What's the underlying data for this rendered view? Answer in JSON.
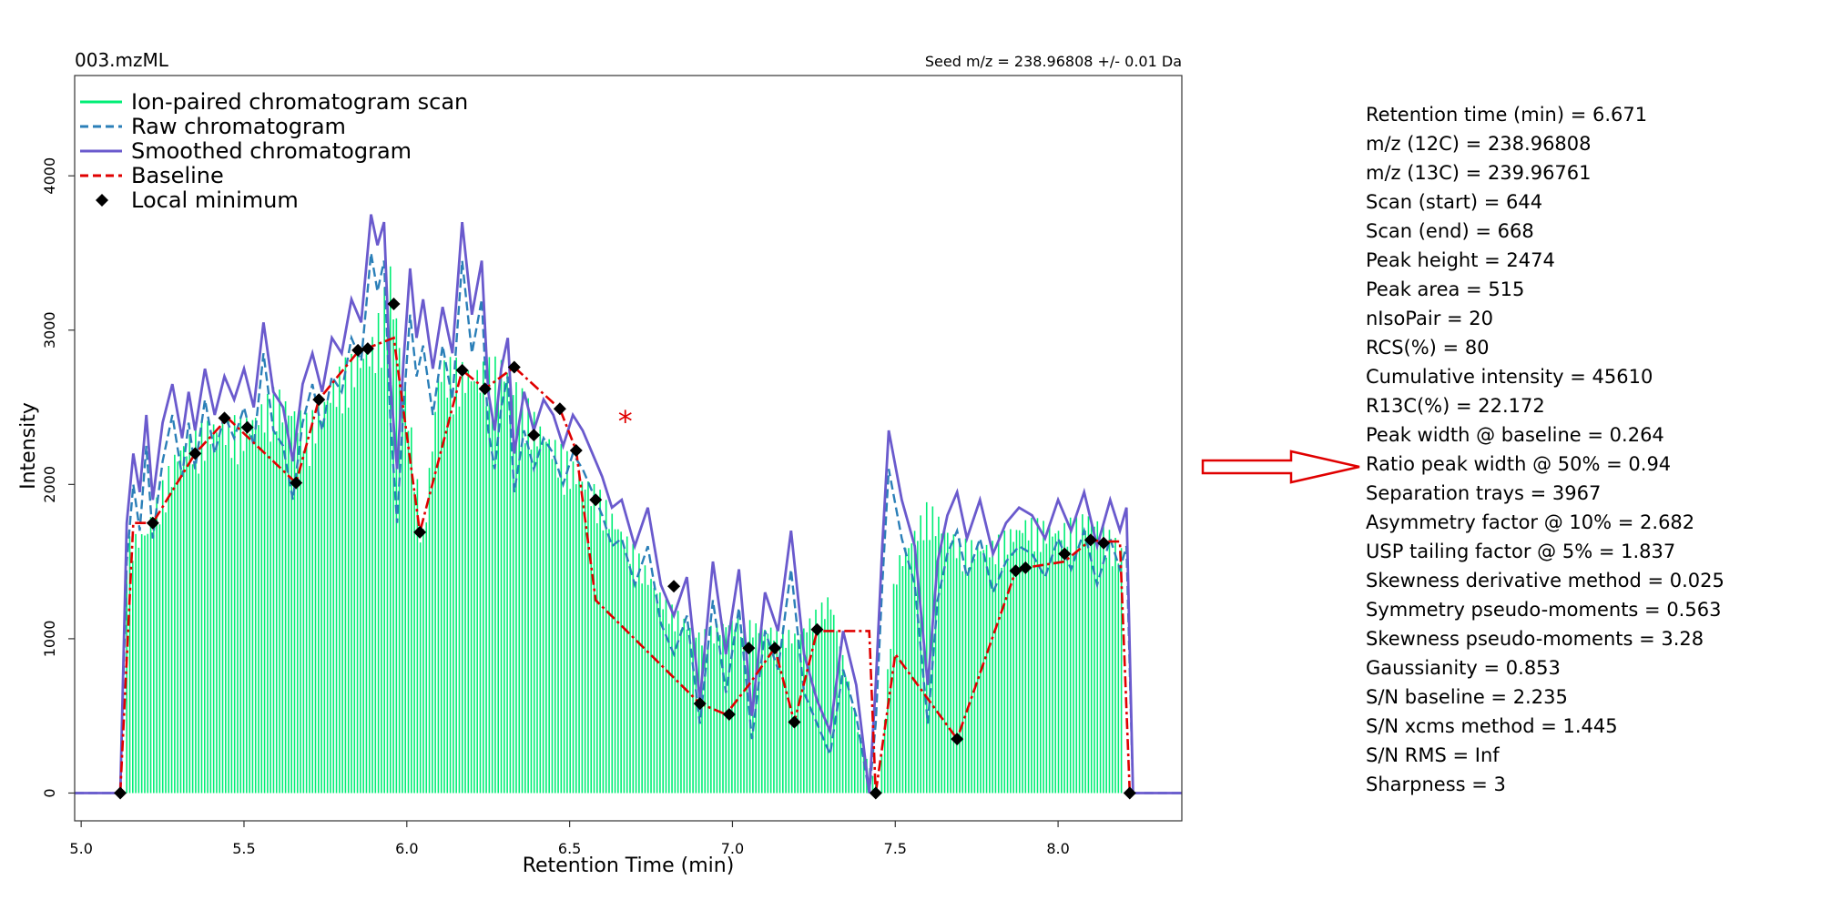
{
  "chart_data": {
    "type": "line",
    "title": "003.mzML",
    "subtitle": "Seed m/z = 238.96808 +/- 0.01 Da",
    "xlabel": "Retention Time (min)",
    "ylabel": "Intensity",
    "xlim": [
      4.98,
      8.38
    ],
    "ylim": [
      -180,
      4650
    ],
    "x_ticks": [
      5.0,
      5.5,
      6.0,
      6.5,
      7.0,
      7.5,
      8.0
    ],
    "x_tick_labels": [
      "5.0",
      "5.5",
      "6.0",
      "6.5",
      "7.0",
      "7.5",
      "8.0"
    ],
    "y_ticks": [
      0,
      1000,
      2000,
      3000,
      4000
    ],
    "y_tick_labels": [
      "0",
      "1000",
      "2000",
      "3000",
      "4000"
    ],
    "grid": false,
    "legend_position": "top-left",
    "legend": [
      {
        "label": "Ion-paired chromatogram scan",
        "style": "solid",
        "color": "#00ee76"
      },
      {
        "label": "Raw chromatogram",
        "style": "dashed",
        "color": "#2b7fb8"
      },
      {
        "label": "Smoothed chromatogram",
        "style": "solid",
        "color": "#6a5acd"
      },
      {
        "label": "Baseline",
        "style": "dashed",
        "color": "#e00000"
      },
      {
        "label": "Local minimum",
        "style": "marker-diamond",
        "color": "#000000"
      }
    ],
    "series": [
      {
        "name": "Smoothed chromatogram",
        "color": "#6a5acd",
        "x": [
          4.98,
          5.12,
          5.14,
          5.16,
          5.18,
          5.2,
          5.22,
          5.25,
          5.28,
          5.31,
          5.33,
          5.35,
          5.38,
          5.41,
          5.44,
          5.47,
          5.5,
          5.53,
          5.56,
          5.59,
          5.62,
          5.65,
          5.68,
          5.71,
          5.74,
          5.77,
          5.8,
          5.83,
          5.86,
          5.89,
          5.91,
          5.93,
          5.95,
          5.97,
          5.99,
          6.01,
          6.03,
          6.05,
          6.08,
          6.11,
          6.14,
          6.17,
          6.2,
          6.23,
          6.25,
          6.27,
          6.29,
          6.31,
          6.33,
          6.36,
          6.39,
          6.42,
          6.45,
          6.48,
          6.51,
          6.54,
          6.57,
          6.6,
          6.63,
          6.66,
          6.7,
          6.74,
          6.78,
          6.82,
          6.86,
          6.9,
          6.94,
          6.98,
          7.02,
          7.06,
          7.1,
          7.14,
          7.18,
          7.22,
          7.26,
          7.3,
          7.34,
          7.38,
          7.42,
          7.44,
          7.46,
          7.48,
          7.52,
          7.56,
          7.6,
          7.63,
          7.66,
          7.69,
          7.72,
          7.76,
          7.8,
          7.84,
          7.88,
          7.92,
          7.96,
          8.0,
          8.04,
          8.08,
          8.12,
          8.16,
          8.19,
          8.21,
          8.23,
          8.25,
          8.38
        ],
        "y": [
          0,
          0,
          1750,
          2200,
          1950,
          2450,
          1900,
          2400,
          2650,
          2300,
          2600,
          2350,
          2750,
          2450,
          2700,
          2550,
          2750,
          2500,
          3050,
          2600,
          2500,
          2150,
          2650,
          2850,
          2600,
          2950,
          2850,
          3200,
          3050,
          3750,
          3550,
          3700,
          2650,
          2100,
          2800,
          3400,
          2950,
          3200,
          2750,
          3150,
          2850,
          3700,
          3100,
          3450,
          2600,
          2350,
          2750,
          2950,
          2200,
          2600,
          2350,
          2550,
          2450,
          2250,
          2450,
          2350,
          2200,
          2050,
          1850,
          1900,
          1600,
          1850,
          1350,
          1150,
          1400,
          600,
          1500,
          900,
          1450,
          500,
          1300,
          1050,
          1700,
          900,
          600,
          400,
          1050,
          700,
          0,
          700,
          1600,
          2350,
          1900,
          1600,
          700,
          1500,
          1800,
          1950,
          1650,
          1900,
          1550,
          1750,
          1850,
          1800,
          1650,
          1900,
          1700,
          1950,
          1600,
          1900,
          1700,
          1850,
          0,
          0,
          0
        ]
      },
      {
        "name": "Raw chromatogram",
        "color": "#2b7fb8",
        "x": [
          4.98,
          5.12,
          5.14,
          5.16,
          5.18,
          5.2,
          5.22,
          5.25,
          5.28,
          5.31,
          5.33,
          5.35,
          5.38,
          5.41,
          5.44,
          5.47,
          5.5,
          5.53,
          5.56,
          5.59,
          5.62,
          5.65,
          5.68,
          5.71,
          5.74,
          5.77,
          5.8,
          5.83,
          5.86,
          5.89,
          5.91,
          5.93,
          5.95,
          5.97,
          5.99,
          6.01,
          6.03,
          6.05,
          6.08,
          6.11,
          6.14,
          6.17,
          6.2,
          6.23,
          6.25,
          6.27,
          6.29,
          6.31,
          6.33,
          6.36,
          6.39,
          6.42,
          6.45,
          6.48,
          6.51,
          6.54,
          6.57,
          6.6,
          6.63,
          6.66,
          6.7,
          6.74,
          6.78,
          6.82,
          6.86,
          6.9,
          6.94,
          6.98,
          7.02,
          7.06,
          7.1,
          7.14,
          7.18,
          7.22,
          7.26,
          7.3,
          7.34,
          7.38,
          7.42,
          7.44,
          7.46,
          7.48,
          7.52,
          7.56,
          7.6,
          7.63,
          7.66,
          7.69,
          7.72,
          7.76,
          7.8,
          7.84,
          7.88,
          7.92,
          7.96,
          8.0,
          8.04,
          8.08,
          8.12,
          8.16,
          8.19,
          8.21,
          8.23,
          8.25,
          8.38
        ],
        "y": [
          0,
          0,
          1500,
          2000,
          1700,
          2250,
          1650,
          2150,
          2450,
          2050,
          2400,
          2100,
          2550,
          2200,
          2450,
          2300,
          2500,
          2250,
          2850,
          2350,
          2250,
          1900,
          2400,
          2650,
          2350,
          2700,
          2600,
          2950,
          2800,
          3500,
          3250,
          3450,
          2400,
          1750,
          2500,
          3100,
          2700,
          2900,
          2450,
          2900,
          2550,
          3450,
          2850,
          3200,
          2350,
          2100,
          2500,
          2700,
          1950,
          2350,
          2100,
          2300,
          2200,
          2000,
          2200,
          2100,
          1950,
          1800,
          1600,
          1650,
          1350,
          1600,
          1100,
          900,
          1150,
          450,
          1250,
          650,
          1200,
          350,
          1050,
          800,
          1450,
          650,
          450,
          250,
          800,
          500,
          0,
          450,
          1350,
          2100,
          1650,
          1350,
          450,
          1250,
          1550,
          1700,
          1400,
          1650,
          1300,
          1500,
          1600,
          1550,
          1400,
          1650,
          1450,
          1700,
          1350,
          1650,
          1450,
          1600,
          0,
          0,
          0
        ]
      },
      {
        "name": "Baseline",
        "color": "#e00000",
        "x": [
          5.12,
          5.16,
          5.22,
          5.35,
          5.45,
          5.66,
          5.73,
          5.85,
          5.96,
          6.04,
          6.17,
          6.24,
          6.33,
          6.47,
          6.52,
          6.58,
          6.9,
          6.98,
          7.05,
          7.13,
          7.19,
          7.26,
          7.34,
          7.42,
          7.44,
          7.5,
          7.69,
          7.87,
          7.9,
          8.02,
          8.1,
          8.14,
          8.19,
          8.22
        ],
        "y": [
          0,
          1750,
          1750,
          2200,
          2430,
          2010,
          2550,
          2860,
          2950,
          1690,
          2740,
          2620,
          2760,
          2490,
          2220,
          1250,
          580,
          510,
          700,
          940,
          460,
          1050,
          1050,
          1050,
          0,
          900,
          350,
          1440,
          1460,
          1500,
          1640,
          1630,
          1630,
          0
        ]
      },
      {
        "name": "Local minimum",
        "color": "#000000",
        "x": [
          5.12,
          5.22,
          5.35,
          5.44,
          5.51,
          5.66,
          5.73,
          5.85,
          5.88,
          5.96,
          6.04,
          6.17,
          6.24,
          6.33,
          6.39,
          6.47,
          6.52,
          6.58,
          6.82,
          6.9,
          6.99,
          7.05,
          7.13,
          7.19,
          7.26,
          7.44,
          7.69,
          7.87,
          7.9,
          8.02,
          8.1,
          8.14,
          8.22
        ],
        "y": [
          0,
          1750,
          2200,
          2430,
          2370,
          2010,
          2550,
          2870,
          2880,
          3170,
          1690,
          2740,
          2620,
          2760,
          2320,
          2490,
          2220,
          1900,
          1340,
          580,
          510,
          940,
          940,
          460,
          1060,
          0,
          350,
          1440,
          1460,
          1550,
          1640,
          1620,
          0
        ]
      },
      {
        "name": "Ion-paired chromatogram scan",
        "color": "#00ee76",
        "x": [
          5.14,
          5.2,
          5.3,
          5.4,
          5.5,
          5.6,
          5.7,
          5.8,
          5.9,
          5.95,
          6.0,
          6.05,
          6.1,
          6.2,
          6.3,
          6.4,
          6.5,
          6.6,
          6.7,
          6.8,
          6.9,
          7.0,
          7.1,
          7.2,
          7.3,
          7.4,
          7.45,
          7.5,
          7.6,
          7.7,
          7.8,
          7.9,
          8.0,
          8.1,
          8.2
        ],
        "y": [
          1650,
          1750,
          2300,
          2450,
          2450,
          2650,
          2450,
          2800,
          3000,
          3450,
          2650,
          1700,
          2850,
          2800,
          2850,
          2450,
          2200,
          1950,
          1600,
          1250,
          1050,
          1150,
          1100,
          1050,
          1300,
          300,
          0,
          1500,
          1900,
          1650,
          1650,
          1800,
          1750,
          1850,
          1600
        ]
      }
    ],
    "marker": {
      "x": 6.671,
      "y": 2474,
      "symbol": "*",
      "color": "#e00000"
    },
    "arrow_color": "#e00000"
  },
  "stats": [
    "Retention time (min) = 6.671",
    "m/z (12C) = 238.96808",
    "m/z (13C) = 239.96761",
    "Scan (start) = 644",
    "Scan (end) = 668",
    "Peak height = 2474",
    "Peak area = 515",
    "nIsoPair = 20",
    "RCS(%) = 80",
    "Cumulative intensity = 45610",
    "R13C(%) = 22.172",
    "Peak width @ baseline = 0.264",
    "Ratio peak width @ 50% = 0.94",
    "Separation trays = 3967",
    "Asymmetry factor @ 10% = 2.682",
    "USP tailing factor @ 5% = 1.837",
    "Skewness derivative method = 0.025",
    "Symmetry pseudo-moments = 0.563",
    "Skewness pseudo-moments = 3.28",
    "Gaussianity = 0.853",
    "S/N baseline = 2.235",
    "S/N xcms method = 1.445",
    "S/N RMS = Inf",
    "Sharpness = 3"
  ]
}
